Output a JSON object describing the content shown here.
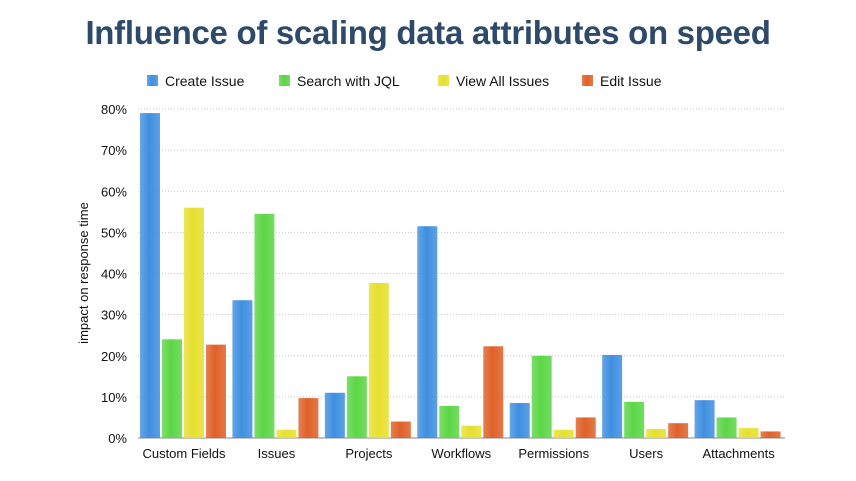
{
  "chart_data": {
    "type": "bar",
    "title": "Influence of scaling data attributes on speed",
    "xlabel": "",
    "ylabel": "impact on response time",
    "ylim": [
      0,
      80
    ],
    "yticks": [
      "0%",
      "10%",
      "20%",
      "30%",
      "40%",
      "50%",
      "60%",
      "70%",
      "80%"
    ],
    "grid": true,
    "legend": "top",
    "categories": [
      "Custom Fields",
      "Issues",
      "Projects",
      "Workflows",
      "Permissions",
      "Users",
      "Attachments"
    ],
    "series": [
      {
        "name": "Create Issue",
        "color": "#3f8fe0",
        "values": [
          79,
          33.5,
          11,
          51.5,
          8.5,
          20.2,
          9.2
        ]
      },
      {
        "name": "Search with JQL",
        "color": "#5cd646",
        "values": [
          24,
          54.5,
          15,
          7.8,
          20,
          8.8,
          5
        ]
      },
      {
        "name": "View All Issues",
        "color": "#e6e02e",
        "values": [
          56,
          2,
          37.7,
          3,
          2,
          2.2,
          2.4
        ]
      },
      {
        "name": "Edit Issue",
        "color": "#df6128",
        "values": [
          22.7,
          9.7,
          4,
          22.3,
          5,
          3.6,
          1.6
        ]
      }
    ]
  }
}
